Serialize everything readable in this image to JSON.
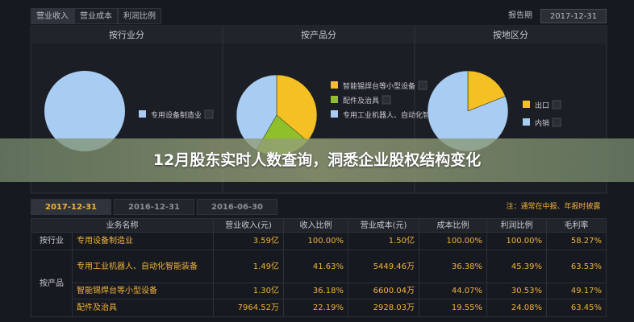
{
  "tabs": [
    "营业收入",
    "营业成本",
    "利润比例"
  ],
  "report_period_label": "报告期",
  "report_period": "2017-12-31",
  "charts": [
    {
      "type": "pie",
      "title": "按行业分",
      "slices": [
        {
          "name": "专用设备制造业",
          "value": 100,
          "color": "#a9cdf2"
        }
      ]
    },
    {
      "type": "pie",
      "title": "按产品分",
      "slices": [
        {
          "name": "智能锡焊台等小型设备",
          "value": 36.18,
          "color": "#f5c024"
        },
        {
          "name": "配件及治具",
          "value": 22.19,
          "color": "#8fc02c"
        },
        {
          "name": "专用工业机器人、自动化智能装备",
          "value": 41.63,
          "color": "#a9cdf2"
        }
      ]
    },
    {
      "type": "pie",
      "title": "按地区分",
      "slices": [
        {
          "name": "出口",
          "value": 19,
          "color": "#f5c024"
        },
        {
          "name": "内销",
          "value": 81,
          "color": "#a9cdf2"
        }
      ]
    }
  ],
  "banner": "12月股东实时人数查询，洞悉企业股权结构变化",
  "period_tabs": [
    "2017-12-31",
    "2016-12-31",
    "2016-06-30"
  ],
  "note": "注：通常在中报、年报时披露",
  "table": {
    "headers": [
      "业务名称",
      "营业收入(元)",
      "收入比例",
      "营业成本(元)",
      "成本比例",
      "利润比例",
      "毛利率"
    ],
    "groups": [
      {
        "label": "按行业",
        "rows": [
          [
            "专用设备制造业",
            "3.59亿",
            "100.00%",
            "1.50亿",
            "100.00%",
            "100.00%",
            "58.27%"
          ]
        ]
      },
      {
        "label": "按产品",
        "rows": [
          [
            "专用工业机器人、自动化智能装备",
            "1.49亿",
            "41.63%",
            "5449.46万",
            "36.38%",
            "45.39%",
            "63.53%"
          ],
          [
            "智能锡焊台等小型设备",
            "1.30亿",
            "36.18%",
            "6600.04万",
            "44.07%",
            "30.53%",
            "49.17%"
          ],
          [
            "配件及治具",
            "7964.52万",
            "22.19%",
            "2928.03万",
            "19.55%",
            "24.08%",
            "63.45%"
          ]
        ]
      }
    ]
  }
}
